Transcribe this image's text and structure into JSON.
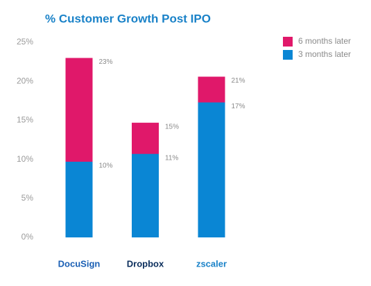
{
  "chart_data": {
    "type": "bar",
    "barmode": "overlay",
    "title": "% Customer Growth Post IPO",
    "categories": [
      "DocuSign",
      "Dropbox",
      "zscaler"
    ],
    "series": [
      {
        "name": "6 months later",
        "color": "#e0186a",
        "values": [
          23,
          14.7,
          20.6
        ],
        "value_labels": [
          "23%",
          "15%",
          "21%"
        ]
      },
      {
        "name": "3 months later",
        "color": "#0a86d4",
        "values": [
          9.7,
          10.7,
          17.3
        ],
        "value_labels": [
          "10%",
          "11%",
          "17%"
        ]
      }
    ],
    "ylim": [
      0,
      25
    ],
    "yticks": [
      {
        "value": 0,
        "label": "0%"
      },
      {
        "value": 5,
        "label": "5%"
      },
      {
        "value": 10,
        "label": "10%"
      },
      {
        "value": 15,
        "label": "15%"
      },
      {
        "value": 20,
        "label": "20%"
      },
      {
        "value": 25,
        "label": "25%"
      }
    ],
    "grid": false,
    "legend": "top-right"
  }
}
